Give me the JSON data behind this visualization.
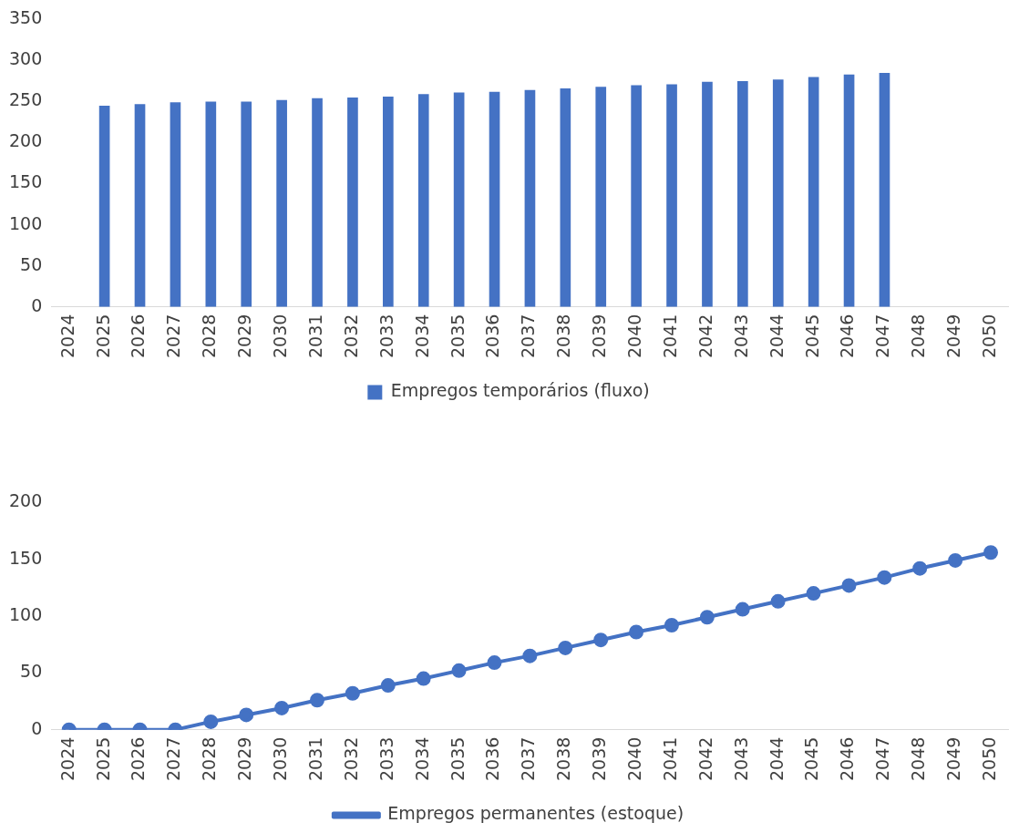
{
  "chart_data": [
    {
      "type": "bar",
      "categories": [
        "2024",
        "2025",
        "2026",
        "2027",
        "2028",
        "2029",
        "2030",
        "2031",
        "2032",
        "2033",
        "2034",
        "2035",
        "2036",
        "2037",
        "2038",
        "2039",
        "2040",
        "2041",
        "2042",
        "2043",
        "2044",
        "2045",
        "2046",
        "2047",
        "2048",
        "2049",
        "2050"
      ],
      "series": [
        {
          "name": "Empregos temporários (fluxo)",
          "color": "#4472c4",
          "values": [
            null,
            245,
            247,
            249,
            250,
            250,
            252,
            254,
            255,
            256,
            259,
            261,
            262,
            264,
            266,
            268,
            270,
            271,
            274,
            275,
            277,
            280,
            283,
            285,
            null,
            null,
            null
          ]
        }
      ],
      "ylim": [
        0,
        350
      ],
      "yticks": [
        0,
        50,
        100,
        150,
        200,
        250,
        300,
        350
      ],
      "grid": false,
      "legend": "bottom"
    },
    {
      "type": "line",
      "categories": [
        "2024",
        "2025",
        "2026",
        "2027",
        "2028",
        "2029",
        "2030",
        "2031",
        "2032",
        "2033",
        "2034",
        "2035",
        "2036",
        "2037",
        "2038",
        "2039",
        "2040",
        "2041",
        "2042",
        "2043",
        "2044",
        "2045",
        "2046",
        "2047",
        "2048",
        "2049",
        "2050"
      ],
      "series": [
        {
          "name": "Empregos permanentes (estoque)",
          "color": "#4472c4",
          "values": [
            0,
            0,
            0,
            0,
            7,
            13,
            19,
            26,
            32,
            39,
            45,
            52,
            59,
            65,
            72,
            79,
            86,
            92,
            99,
            106,
            113,
            120,
            127,
            134,
            142,
            149,
            156
          ]
        }
      ],
      "ylim": [
        0,
        200
      ],
      "yticks": [
        0,
        50,
        100,
        150,
        200
      ],
      "grid": false,
      "legend": "bottom",
      "marker": "circle",
      "line_style": "solid"
    }
  ]
}
